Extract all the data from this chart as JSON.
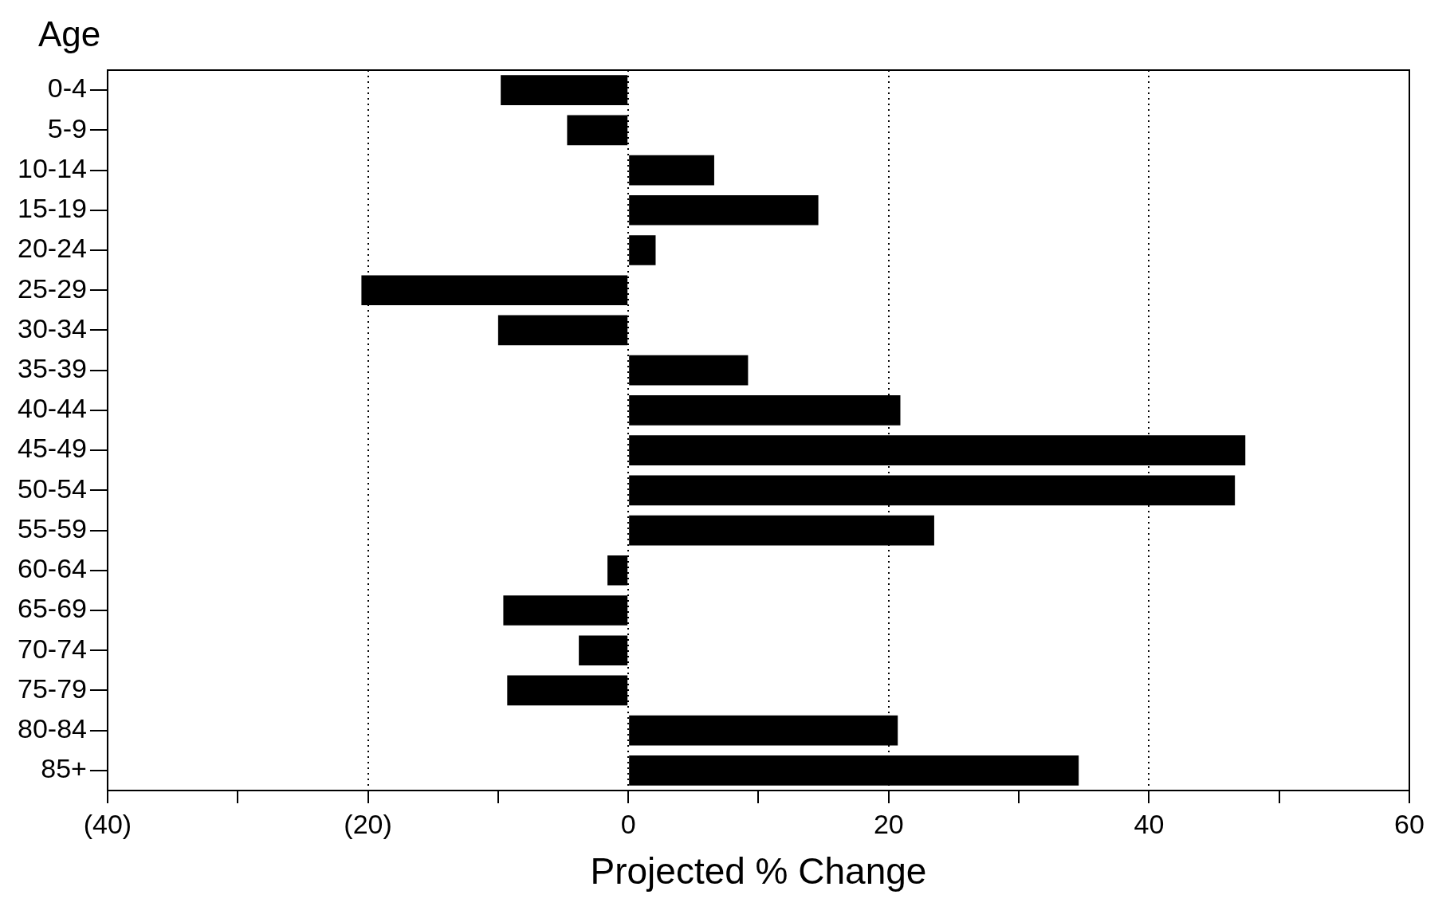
{
  "chart_data": {
    "type": "bar",
    "orientation": "horizontal",
    "ylabel": "Age",
    "xlabel": "Projected % Change",
    "categories": [
      "0-4",
      "5-9",
      "10-14",
      "15-19",
      "20-24",
      "25-29",
      "30-34",
      "35-39",
      "40-44",
      "45-49",
      "50-54",
      "55-59",
      "60-64",
      "65-69",
      "70-74",
      "75-79",
      "80-84",
      "85+"
    ],
    "values": [
      -9.8,
      -4.7,
      6.6,
      14.6,
      2.1,
      -20.5,
      -10,
      9.2,
      20.9,
      47.4,
      46.6,
      23.5,
      -1.6,
      -9.6,
      -3.8,
      -9.3,
      20.7,
      34.6
    ],
    "color": "#000000",
    "xlim": [
      -40,
      60
    ],
    "xticks": [
      {
        "value": -40,
        "label": "(40)"
      },
      {
        "value": -30,
        "label": null
      },
      {
        "value": -20,
        "label": "(20)"
      },
      {
        "value": -10,
        "label": null
      },
      0,
      {
        "value": 10,
        "label": null
      },
      20,
      {
        "value": 30,
        "label": null
      },
      40,
      {
        "value": 50,
        "label": null
      },
      60
    ],
    "grid": "x",
    "line_style": "dotted"
  }
}
